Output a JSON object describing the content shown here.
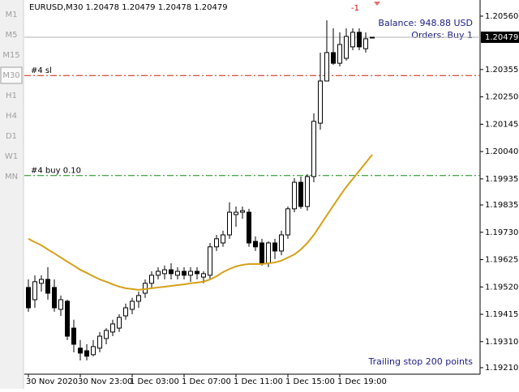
{
  "toolbar": {
    "timeframes": [
      "M1",
      "M5",
      "M15",
      "M30",
      "H1",
      "H4",
      "D1",
      "W1",
      "MN"
    ],
    "selected": 3
  },
  "chart_data": {
    "type": "candlestick",
    "title": "EURUSD,M30  1.20478 1.20479 1.20478 1.20479",
    "categories": [
      "30 Nov 2020",
      null,
      null,
      null,
      null,
      null,
      null,
      null,
      "30 Nov 23:00",
      null,
      null,
      null,
      null,
      null,
      null,
      null,
      "1 Dec 03:00",
      null,
      null,
      null,
      null,
      null,
      null,
      null,
      "1 Dec 07:00",
      null,
      null,
      null,
      null,
      null,
      null,
      null,
      "1 Dec 11:00",
      null,
      null,
      null,
      null,
      null,
      null,
      null,
      "1 Dec 15:00",
      null,
      null,
      null,
      null,
      null,
      null,
      null,
      "1 Dec 19:00",
      null,
      null,
      null,
      null,
      null
    ],
    "open": [
      1.19518,
      1.19471,
      1.19534,
      1.19549,
      1.19518,
      1.19434,
      1.19465,
      1.19362,
      1.19285,
      1.19275,
      1.1926,
      1.19285,
      1.19322,
      1.19347,
      1.19362,
      1.19409,
      1.19434,
      1.19465,
      1.19496,
      1.19534,
      1.19565,
      1.19571,
      1.19586,
      1.19565,
      1.1958,
      1.19565,
      1.1958,
      1.19558,
      1.19565,
      1.19674,
      1.19689,
      1.1972,
      1.19798,
      1.19807,
      1.19807,
      1.19695,
      1.19689,
      1.19611,
      1.19689,
      1.19658,
      1.1972,
      1.1982,
      1.19922,
      1.19829,
      1.19944,
      1.20149,
      1.20311,
      1.2042,
      1.20379,
      1.20398,
      1.20442,
      1.20498,
      1.20435,
      1.20478
    ],
    "high": [
      1.19549,
      1.19565,
      1.19565,
      1.19596,
      1.19549,
      1.19487,
      1.19471,
      1.19394,
      1.19316,
      1.193,
      1.19316,
      1.19347,
      1.19362,
      1.19394,
      1.19415,
      1.19456,
      1.19478,
      1.19502,
      1.19549,
      1.1958,
      1.19596,
      1.19602,
      1.19611,
      1.19596,
      1.19596,
      1.19596,
      1.19596,
      1.1958,
      1.19689,
      1.1972,
      1.19736,
      1.19845,
      1.19829,
      1.19829,
      1.1982,
      1.19714,
      1.19705,
      1.19695,
      1.19705,
      1.19736,
      1.19829,
      1.19938,
      1.19944,
      1.19953,
      1.20187,
      1.2042,
      1.20544,
      1.20513,
      1.20498,
      1.20513,
      1.20513,
      1.20513,
      1.20498,
      1.20479
    ],
    "low": [
      1.19425,
      1.1944,
      1.19502,
      1.19471,
      1.19425,
      1.19409,
      1.19316,
      1.19269,
      1.19238,
      1.19238,
      1.19254,
      1.19269,
      1.193,
      1.19331,
      1.19347,
      1.19394,
      1.19415,
      1.1944,
      1.19478,
      1.19518,
      1.19549,
      1.19549,
      1.19549,
      1.19549,
      1.19549,
      1.1954,
      1.19549,
      1.19534,
      1.19549,
      1.19658,
      1.19674,
      1.19705,
      1.19751,
      1.19782,
      1.19674,
      1.19658,
      1.19602,
      1.19596,
      1.19627,
      1.19642,
      1.19705,
      1.19807,
      1.1982,
      1.19813,
      1.19922,
      1.20124,
      1.20311,
      1.20373,
      1.20367,
      1.20389,
      1.20429,
      1.20429,
      1.2042,
      1.20478
    ],
    "close": [
      1.1944,
      1.1954,
      1.19549,
      1.19496,
      1.1944,
      1.19471,
      1.19331,
      1.193,
      1.19266,
      1.19254,
      1.19291,
      1.19331,
      1.19353,
      1.19378,
      1.19403,
      1.1944,
      1.19465,
      1.19487,
      1.19534,
      1.19565,
      1.1958,
      1.19586,
      1.19571,
      1.1958,
      1.19565,
      1.1958,
      1.19571,
      1.19571,
      1.19674,
      1.19705,
      1.1972,
      1.19807,
      1.19807,
      1.19813,
      1.19689,
      1.19674,
      1.19611,
      1.19689,
      1.19658,
      1.1972,
      1.1982,
      1.19922,
      1.19829,
      1.19944,
      1.20156,
      1.20311,
      1.2042,
      1.20379,
      1.20451,
      1.20482,
      1.20498,
      1.20442,
      1.20473,
      1.20479
    ],
    "up_color": "#ffffff",
    "down_color": "#000000",
    "overlays": [
      {
        "color": "#d4a017",
        "values": [
          1.19705,
          1.19692,
          1.1968,
          1.19664,
          1.19649,
          1.19633,
          1.19617,
          1.19602,
          1.19586,
          1.19574,
          1.19561,
          1.19549,
          1.1954,
          1.1953,
          1.19521,
          1.19515,
          1.19512,
          1.19509,
          1.19512,
          1.19515,
          1.19518,
          1.19521,
          1.19524,
          1.19527,
          1.1953,
          1.19534,
          1.19537,
          1.1954,
          1.19549,
          1.19561,
          1.19577,
          1.19589,
          1.19599,
          1.19605,
          1.19608,
          1.19608,
          1.19608,
          1.19611,
          1.19614,
          1.19621,
          1.19633,
          1.19645,
          1.19664,
          1.19689,
          1.1972,
          1.19757,
          1.19795,
          1.19832,
          1.19869,
          1.19904,
          1.19935,
          1.19966,
          1.19997,
          1.20028
        ]
      }
    ],
    "ylim": [
      1.19185,
      1.20622
    ],
    "yticks": [
      {
        "value": 1.2056,
        "label": "1.20560"
      },
      {
        "value": 1.20355,
        "label": "1.20355"
      },
      {
        "value": 1.2025,
        "label": "1.20250"
      },
      {
        "value": 1.20145,
        "label": "1.20145"
      },
      {
        "value": 1.2004,
        "label": "1.20040"
      },
      {
        "value": 1.19935,
        "label": "1.19935"
      },
      {
        "value": 1.19835,
        "label": "1.19835"
      },
      {
        "value": 1.1973,
        "label": "1.19730"
      },
      {
        "value": 1.19625,
        "label": "1.19625"
      },
      {
        "value": 1.1952,
        "label": "1.19520"
      },
      {
        "value": 1.19415,
        "label": "1.19415"
      },
      {
        "value": 1.1931,
        "label": "1.19310"
      },
      {
        "value": 1.1921,
        "label": "1.19210"
      }
    ],
    "levels": [
      {
        "name": "#4 sl",
        "value": 1.20332,
        "color": "#cc2200"
      },
      {
        "name": "#4 buy 0.10",
        "value": 1.19948,
        "color": "#118811"
      }
    ],
    "current_price": {
      "value": 1.20479,
      "label": "1.20479"
    },
    "annotations": {
      "signal": "-1",
      "balance": "Balance: 948.88 USD",
      "orders": "Orders: Buy 1",
      "trailing": "Trailing stop 200 points"
    }
  }
}
